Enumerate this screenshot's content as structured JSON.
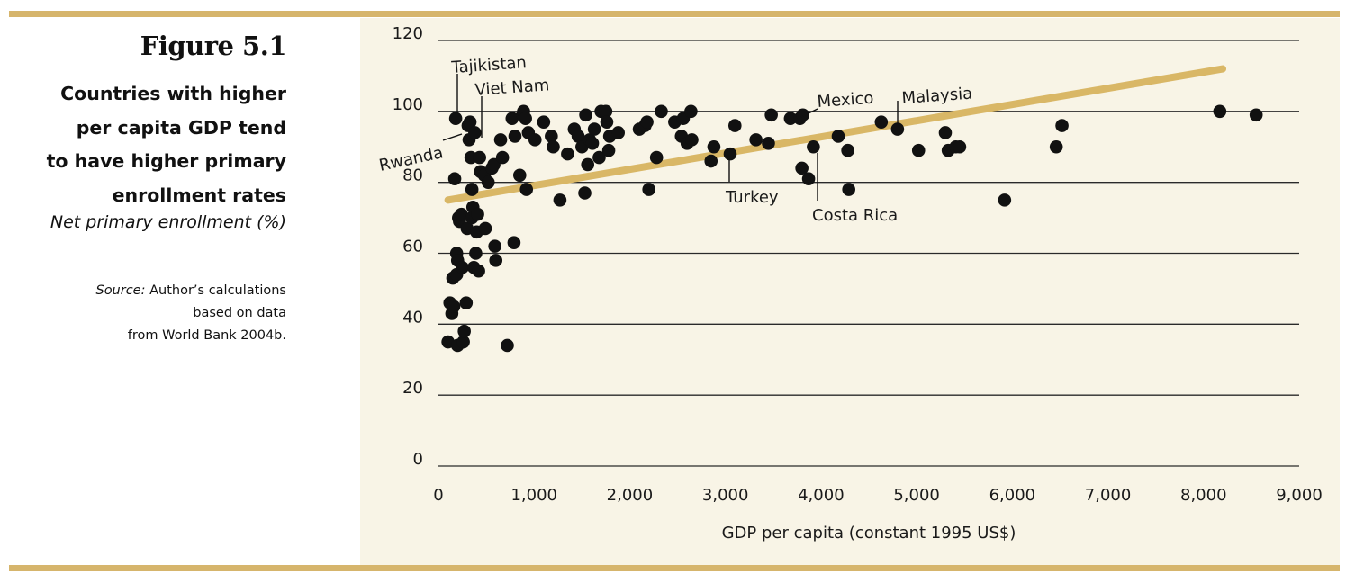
{
  "figure": {
    "number": "Figure 5.1",
    "title_lines": [
      "Countries with higher",
      "per capita GDP tend",
      "to have higher primary",
      "enrollment rates"
    ],
    "subtitle": "Net primary enrollment (%)",
    "source_label": "Source:",
    "source_lines": [
      "Author’s calculations",
      "based on data",
      "from World Bank 2004b."
    ]
  },
  "colors": {
    "rule": "#d6b56c",
    "panel_bg": "#f8f4e6",
    "trend": "#d9b766",
    "point": "#111111",
    "grid": "#2a2a2a"
  },
  "chart_data": {
    "type": "scatter",
    "title": "Countries with higher per capita GDP tend to have higher primary enrollment rates",
    "xlabel": "GDP per capita (constant 1995 US$)",
    "ylabel": "Net primary enrollment (%)",
    "xlim": [
      0,
      9000
    ],
    "ylim": [
      0,
      120
    ],
    "xticks": [
      0,
      1000,
      2000,
      3000,
      4000,
      5000,
      6000,
      7000,
      8000,
      9000
    ],
    "xtick_labels": [
      "0",
      "1,000",
      "2,000",
      "3,000",
      "4,000",
      "5,000",
      "6,000",
      "7,000",
      "8,000",
      "9,000"
    ],
    "yticks": [
      0,
      20,
      40,
      60,
      80,
      100,
      120
    ],
    "ytick_labels": [
      "0",
      "20",
      "40",
      "60",
      "80",
      "100",
      "120"
    ],
    "grid": true,
    "trendline": {
      "x": [
        0,
        8550
      ],
      "y": [
        75,
        112
      ]
    },
    "points": [
      [
        100,
        35
      ],
      [
        120,
        46
      ],
      [
        140,
        43
      ],
      [
        150,
        53
      ],
      [
        160,
        45
      ],
      [
        170,
        81
      ],
      [
        180,
        98
      ],
      [
        190,
        54
      ],
      [
        190,
        60
      ],
      [
        200,
        58
      ],
      [
        200,
        34
      ],
      [
        210,
        70
      ],
      [
        220,
        69
      ],
      [
        240,
        71
      ],
      [
        250,
        56
      ],
      [
        260,
        35
      ],
      [
        270,
        38
      ],
      [
        290,
        46
      ],
      [
        300,
        67
      ],
      [
        310,
        96
      ],
      [
        320,
        92
      ],
      [
        330,
        97
      ],
      [
        340,
        87
      ],
      [
        350,
        78
      ],
      [
        350,
        70
      ],
      [
        360,
        73
      ],
      [
        370,
        56
      ],
      [
        380,
        94
      ],
      [
        390,
        60
      ],
      [
        400,
        66
      ],
      [
        410,
        71
      ],
      [
        420,
        55
      ],
      [
        430,
        87
      ],
      [
        440,
        83
      ],
      [
        480,
        82
      ],
      [
        490,
        67
      ],
      [
        520,
        80
      ],
      [
        560,
        84
      ],
      [
        580,
        85
      ],
      [
        590,
        62
      ],
      [
        600,
        58
      ],
      [
        650,
        92
      ],
      [
        670,
        87
      ],
      [
        720,
        34
      ],
      [
        770,
        98
      ],
      [
        790,
        63
      ],
      [
        800,
        93
      ],
      [
        850,
        82
      ],
      [
        880,
        99
      ],
      [
        890,
        100
      ],
      [
        910,
        98
      ],
      [
        920,
        78
      ],
      [
        940,
        94
      ],
      [
        1010,
        92
      ],
      [
        1100,
        97
      ],
      [
        1180,
        93
      ],
      [
        1200,
        90
      ],
      [
        1270,
        75
      ],
      [
        1350,
        88
      ],
      [
        1420,
        95
      ],
      [
        1460,
        93
      ],
      [
        1500,
        90
      ],
      [
        1530,
        77
      ],
      [
        1540,
        99
      ],
      [
        1560,
        85
      ],
      [
        1580,
        92
      ],
      [
        1610,
        91
      ],
      [
        1630,
        95
      ],
      [
        1680,
        87
      ],
      [
        1700,
        100
      ],
      [
        1750,
        100
      ],
      [
        1760,
        97
      ],
      [
        1780,
        89
      ],
      [
        1790,
        93
      ],
      [
        1880,
        94
      ],
      [
        2100,
        95
      ],
      [
        2160,
        96
      ],
      [
        2180,
        97
      ],
      [
        2200,
        78
      ],
      [
        2280,
        87
      ],
      [
        2330,
        100
      ],
      [
        2470,
        97
      ],
      [
        2540,
        93
      ],
      [
        2560,
        98
      ],
      [
        2600,
        91
      ],
      [
        2640,
        100
      ],
      [
        2650,
        92
      ],
      [
        2850,
        86
      ],
      [
        2880,
        90
      ],
      [
        3050,
        88
      ],
      [
        3100,
        96
      ],
      [
        3320,
        92
      ],
      [
        3450,
        91
      ],
      [
        3480,
        99
      ],
      [
        3680,
        98
      ],
      [
        3780,
        98
      ],
      [
        3800,
        84
      ],
      [
        3810,
        99
      ],
      [
        3870,
        81
      ],
      [
        3920,
        90
      ],
      [
        4180,
        93
      ],
      [
        4280,
        89
      ],
      [
        4290,
        78
      ],
      [
        4630,
        97
      ],
      [
        4800,
        95
      ],
      [
        5020,
        89
      ],
      [
        5300,
        94
      ],
      [
        5330,
        89
      ],
      [
        5410,
        90
      ],
      [
        5450,
        90
      ],
      [
        5920,
        75
      ],
      [
        6460,
        90
      ],
      [
        6520,
        96
      ],
      [
        8170,
        100
      ],
      [
        8550,
        99
      ]
    ],
    "annotations": [
      {
        "label": "Tajikistan",
        "x": 180,
        "y": 98
      },
      {
        "label": "Viet Nam",
        "x": 400,
        "y": 94
      },
      {
        "label": "Rwanda",
        "x": 200,
        "y": 92
      },
      {
        "label": "Mexico",
        "x": 3800,
        "y": 98
      },
      {
        "label": "Malaysia",
        "x": 4800,
        "y": 95
      },
      {
        "label": "Turkey",
        "x": 3050,
        "y": 88
      },
      {
        "label": "Costa Rica",
        "x": 3920,
        "y": 90
      }
    ]
  }
}
